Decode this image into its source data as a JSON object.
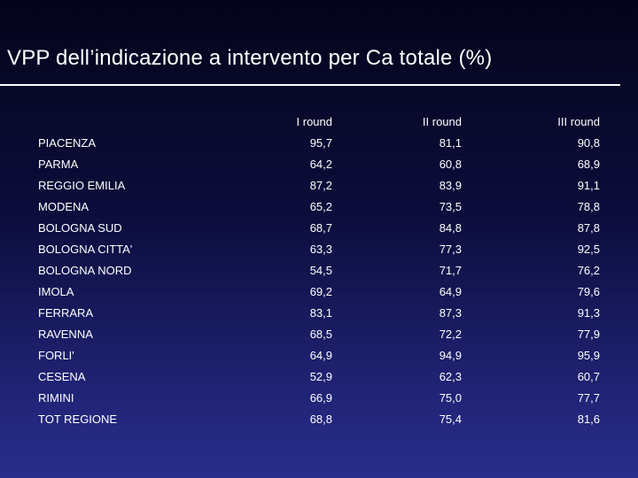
{
  "title": "VPP dell’indicazione a intervento per Ca totale (%)",
  "columns": [
    "I round",
    "II round",
    "III round"
  ],
  "rows": [
    {
      "name": "PIACENZA",
      "values": [
        "95,7",
        "81,1",
        "90,8"
      ]
    },
    {
      "name": "PARMA",
      "values": [
        "64,2",
        "60,8",
        "68,9"
      ]
    },
    {
      "name": "REGGIO EMILIA",
      "values": [
        "87,2",
        "83,9",
        "91,1"
      ]
    },
    {
      "name": "MODENA",
      "values": [
        "65,2",
        "73,5",
        "78,8"
      ]
    },
    {
      "name": "BOLOGNA SUD",
      "values": [
        "68,7",
        "84,8",
        "87,8"
      ]
    },
    {
      "name": "BOLOGNA CITTA'",
      "values": [
        "63,3",
        "77,3",
        "92,5"
      ]
    },
    {
      "name": "BOLOGNA NORD",
      "values": [
        "54,5",
        "71,7",
        "76,2"
      ]
    },
    {
      "name": "IMOLA",
      "values": [
        "69,2",
        "64,9",
        "79,6"
      ]
    },
    {
      "name": "FERRARA",
      "values": [
        "83,1",
        "87,3",
        "91,3"
      ]
    },
    {
      "name": "RAVENNA",
      "values": [
        "68,5",
        "72,2",
        "77,9"
      ]
    },
    {
      "name": "FORLI'",
      "values": [
        "64,9",
        "94,9",
        "95,9"
      ]
    },
    {
      "name": "CESENA",
      "values": [
        "52,9",
        "62,3",
        "60,7"
      ]
    },
    {
      "name": "RIMINI",
      "values": [
        "66,9",
        "75,0",
        "77,7"
      ]
    },
    {
      "name": "TOT REGIONE",
      "values": [
        "68,8",
        "75,4",
        "81,6"
      ]
    }
  ]
}
